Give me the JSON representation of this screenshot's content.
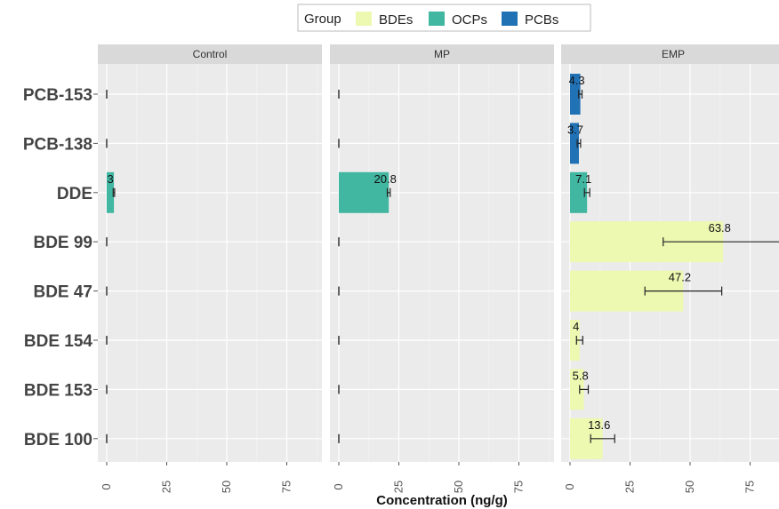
{
  "chart_data": {
    "type": "bar",
    "orientation": "horizontal",
    "facets": [
      "Control",
      "MP",
      "EMP"
    ],
    "categories": [
      "PCB-153",
      "PCB-138",
      "DDE",
      "BDE 99",
      "BDE 47",
      "BDE 154",
      "BDE 153",
      "BDE 100"
    ],
    "category_group": [
      "PCBs",
      "PCBs",
      "OCPs",
      "BDEs",
      "BDEs",
      "BDEs",
      "BDEs",
      "BDEs"
    ],
    "legend": {
      "title": "Group",
      "placement": "top",
      "entries": [
        {
          "name": "BDEs",
          "color": "#edf8b1"
        },
        {
          "name": "OCPs",
          "color": "#41b6a0"
        },
        {
          "name": "PCBs",
          "color": "#2171b5"
        }
      ]
    },
    "xlabel": "Concentration (ng/g)",
    "ylabel": "",
    "xlim": [
      0,
      90
    ],
    "xticks": [
      0,
      25,
      50,
      75
    ],
    "xtick_labels": [
      "0",
      "25",
      "50",
      "75"
    ],
    "grid": true,
    "series": [
      {
        "facet": "Control",
        "values": [
          0,
          0,
          3,
          0,
          0,
          0,
          0,
          0
        ],
        "errors": [
          0,
          0,
          0.3,
          0,
          0,
          0,
          0,
          0
        ],
        "labels": [
          "",
          "",
          "3",
          "",
          "",
          "",
          "",
          ""
        ]
      },
      {
        "facet": "MP",
        "values": [
          0,
          0,
          20.8,
          0,
          0,
          0,
          0,
          0
        ],
        "errors": [
          0,
          0,
          0.6,
          0,
          0,
          0,
          0,
          0
        ],
        "labels": [
          "",
          "",
          "20.8",
          "",
          "",
          "",
          "",
          ""
        ]
      },
      {
        "facet": "EMP",
        "values": [
          4.3,
          3.7,
          7.1,
          63.8,
          47.2,
          4,
          5.8,
          13.6
        ],
        "errors": [
          0.7,
          0.7,
          1.1,
          25,
          16,
          1.3,
          1.8,
          5
        ],
        "labels": [
          "4.3",
          "3.7",
          "7.1",
          "63.8",
          "47.2",
          "4",
          "5.8",
          "13.6"
        ]
      }
    ]
  }
}
